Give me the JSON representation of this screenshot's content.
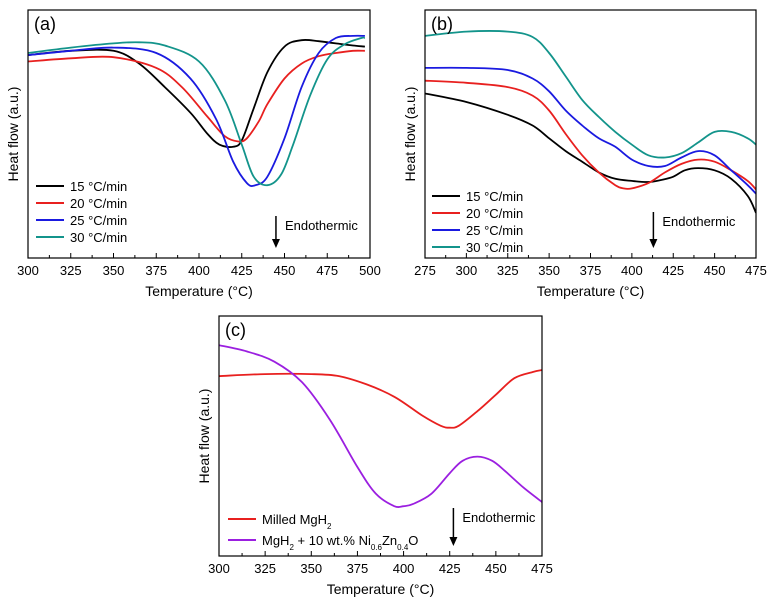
{
  "chart_data": [
    {
      "type": "line",
      "panel_label": "(a)",
      "xlabel": "Temperature (°C)",
      "ylabel": "Heat flow (a.u.)",
      "xlim": [
        300,
        500
      ],
      "ylim": [
        0,
        1
      ],
      "xticks": [
        "300",
        "325",
        "350",
        "375",
        "400",
        "425",
        "450",
        "475",
        "500"
      ],
      "legend_position": "bottom-left",
      "annotation": {
        "text": "Endothermic",
        "x": 445
      },
      "series": [
        {
          "name": "15 °C/min",
          "color": "#000000",
          "x": [
            300,
            325,
            350,
            365,
            380,
            395,
            405,
            412,
            420,
            425,
            432,
            440,
            450,
            460,
            470,
            480,
            490,
            497
          ],
          "y": [
            0.87,
            0.89,
            0.89,
            0.83,
            0.72,
            0.6,
            0.5,
            0.45,
            0.44,
            0.47,
            0.62,
            0.79,
            0.91,
            0.94,
            0.935,
            0.925,
            0.915,
            0.91
          ]
        },
        {
          "name": "20 °C/min",
          "color": "#e8201f",
          "x": [
            300,
            325,
            350,
            375,
            390,
            405,
            415,
            423,
            428,
            435,
            440,
            450,
            460,
            470,
            480,
            490,
            497
          ],
          "y": [
            0.84,
            0.855,
            0.86,
            0.81,
            0.72,
            0.58,
            0.49,
            0.465,
            0.48,
            0.56,
            0.64,
            0.76,
            0.83,
            0.865,
            0.88,
            0.89,
            0.89
          ]
        },
        {
          "name": "25 °C/min",
          "color": "#1a1ae0",
          "x": [
            300,
            325,
            350,
            375,
            395,
            410,
            420,
            428,
            433,
            440,
            450,
            460,
            470,
            480,
            490,
            497
          ],
          "y": [
            0.87,
            0.89,
            0.905,
            0.88,
            0.76,
            0.57,
            0.37,
            0.27,
            0.26,
            0.3,
            0.48,
            0.72,
            0.88,
            0.95,
            0.96,
            0.96
          ]
        },
        {
          "name": "30 °C/min",
          "color": "#13948b",
          "x": [
            300,
            325,
            350,
            365,
            380,
            400,
            415,
            425,
            432,
            440,
            448,
            455,
            465,
            475,
            485,
            495,
            497
          ],
          "y": [
            0.88,
            0.905,
            0.925,
            0.93,
            0.915,
            0.84,
            0.66,
            0.45,
            0.3,
            0.26,
            0.31,
            0.45,
            0.68,
            0.85,
            0.92,
            0.95,
            0.95
          ]
        }
      ]
    },
    {
      "type": "line",
      "panel_label": "(b)",
      "xlabel": "Temperature (°C)",
      "ylabel": "Heat flow (a.u.)",
      "xlim": [
        275,
        475
      ],
      "ylim": [
        0,
        1
      ],
      "xticks": [
        "275",
        "300",
        "325",
        "350",
        "375",
        "400",
        "425",
        "450",
        "475"
      ],
      "legend_position": "bottom-left",
      "annotation": {
        "text": "Endothermic",
        "x": 413
      },
      "series": [
        {
          "name": "15 °C/min",
          "color": "#000000",
          "x": [
            275,
            300,
            325,
            340,
            350,
            360,
            370,
            380,
            390,
            400,
            410,
            418,
            425,
            432,
            440,
            450,
            460,
            470,
            475
          ],
          "y": [
            0.69,
            0.65,
            0.59,
            0.54,
            0.48,
            0.42,
            0.37,
            0.32,
            0.29,
            0.28,
            0.275,
            0.285,
            0.3,
            0.33,
            0.34,
            0.33,
            0.29,
            0.21,
            0.13
          ]
        },
        {
          "name": "20 °C/min",
          "color": "#e8201f",
          "x": [
            275,
            300,
            325,
            340,
            350,
            360,
            370,
            380,
            390,
            395,
            400,
            410,
            420,
            430,
            440,
            450,
            460,
            470,
            475
          ],
          "y": [
            0.75,
            0.74,
            0.72,
            0.68,
            0.61,
            0.5,
            0.4,
            0.32,
            0.26,
            0.245,
            0.245,
            0.27,
            0.32,
            0.36,
            0.38,
            0.37,
            0.33,
            0.28,
            0.24
          ]
        },
        {
          "name": "25 °C/min",
          "color": "#1a1ae0",
          "x": [
            275,
            300,
            325,
            340,
            350,
            360,
            370,
            380,
            390,
            400,
            410,
            420,
            430,
            440,
            450,
            460,
            470,
            475
          ],
          "y": [
            0.81,
            0.81,
            0.8,
            0.76,
            0.7,
            0.61,
            0.54,
            0.48,
            0.44,
            0.38,
            0.35,
            0.35,
            0.39,
            0.42,
            0.4,
            0.33,
            0.26,
            0.22
          ]
        },
        {
          "name": "30 °C/min",
          "color": "#13948b",
          "x": [
            275,
            300,
            325,
            340,
            350,
            360,
            370,
            380,
            390,
            400,
            410,
            420,
            430,
            440,
            450,
            460,
            470,
            475
          ],
          "y": [
            0.96,
            0.98,
            0.98,
            0.955,
            0.88,
            0.77,
            0.66,
            0.58,
            0.51,
            0.45,
            0.4,
            0.39,
            0.41,
            0.46,
            0.51,
            0.51,
            0.48,
            0.45
          ]
        }
      ]
    },
    {
      "type": "line",
      "panel_label": "(c)",
      "xlabel": "Temperature (°C)",
      "ylabel": "Heat flow (a.u.)",
      "xlim": [
        300,
        475
      ],
      "ylim": [
        0,
        1
      ],
      "xticks": [
        "300",
        "325",
        "350",
        "375",
        "400",
        "425",
        "450",
        "475"
      ],
      "legend_position": "bottom-left",
      "annotation": {
        "text": "Endothermic",
        "x": 427
      },
      "series": [
        {
          "name": "Milled MgH2",
          "legend": {
            "base": "Milled MgH",
            "sub": "2"
          },
          "color": "#e8201f",
          "x": [
            300,
            325,
            350,
            365,
            380,
            395,
            410,
            420,
            425,
            430,
            440,
            450,
            460,
            470,
            475
          ],
          "y": [
            0.79,
            0.8,
            0.8,
            0.79,
            0.75,
            0.69,
            0.6,
            0.55,
            0.54,
            0.55,
            0.62,
            0.7,
            0.78,
            0.81,
            0.82
          ]
        },
        {
          "name": "MgH2 + 10 wt.% Ni0.6Zn0.4O",
          "legend": {
            "parts": [
              [
                "MgH",
                "n"
              ],
              [
                "2",
                "s"
              ],
              [
                " + 10 wt.% Ni",
                "n"
              ],
              [
                "0.6",
                "s"
              ],
              [
                "Zn",
                "n"
              ],
              [
                "0.4",
                "s"
              ],
              [
                "O",
                "n"
              ]
            ]
          },
          "color": "#9b1fe0",
          "x": [
            300,
            315,
            330,
            345,
            360,
            375,
            385,
            395,
            400,
            405,
            415,
            425,
            432,
            440,
            448,
            455,
            465,
            475
          ],
          "y": [
            0.94,
            0.91,
            0.86,
            0.76,
            0.58,
            0.35,
            0.22,
            0.16,
            0.16,
            0.17,
            0.22,
            0.32,
            0.38,
            0.4,
            0.38,
            0.33,
            0.25,
            0.18
          ]
        }
      ]
    }
  ]
}
